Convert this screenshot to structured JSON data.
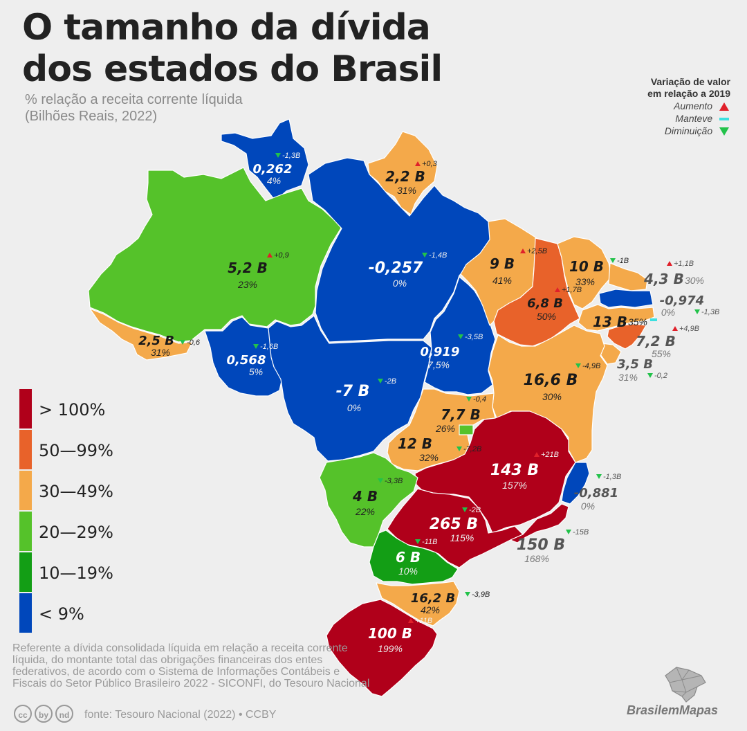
{
  "title": "O tamanho da dívida dos estados do Brasil",
  "subtitle_line1": "% relação a receita corrente líquida",
  "subtitle_line2": "(Bilhões Reais, 2022)",
  "variation_legend": {
    "title_line1": "Variação de valor",
    "title_line2": "em relação a 2019",
    "increase": "Aumento",
    "same": "Manteve",
    "decrease": "Diminuição"
  },
  "color_legend": [
    {
      "label": "> 100%",
      "color": "#b0001a"
    },
    {
      "label": "50—99%",
      "color": "#e8622a"
    },
    {
      "label": "30—49%",
      "color": "#f4a94a"
    },
    {
      "label": "20—29%",
      "color": "#55c22a"
    },
    {
      "label": "10—19%",
      "color": "#139e15"
    },
    {
      "label": "< 9%",
      "color": "#0047bb"
    }
  ],
  "states": [
    {
      "id": "RR",
      "value": "0,262",
      "pct": "4%",
      "change": "-1,3B",
      "dir": "down"
    },
    {
      "id": "AP",
      "value": "2,2 B",
      "pct": "31%",
      "change": "+0,3",
      "dir": "up"
    },
    {
      "id": "AM",
      "value": "5,2 B",
      "pct": "23%",
      "change": "+0,9",
      "dir": "up"
    },
    {
      "id": "PA",
      "value": "-0,257",
      "pct": "0%",
      "change": "-1,4B",
      "dir": "down"
    },
    {
      "id": "AC",
      "value": "2,5 B",
      "pct": "31%",
      "change": "-0,6",
      "dir": "down"
    },
    {
      "id": "RO",
      "value": "0,568",
      "pct": "5%",
      "change": "-1,6B",
      "dir": "down"
    },
    {
      "id": "MT",
      "value": "-7 B",
      "pct": "0%",
      "change": "-2B",
      "dir": "down"
    },
    {
      "id": "TO",
      "value": "0,919",
      "pct": "7,5%",
      "change": "-3,5B",
      "dir": "down"
    },
    {
      "id": "MA",
      "value": "9 B",
      "pct": "41%",
      "change": "+2,5B",
      "dir": "up"
    },
    {
      "id": "PI",
      "value": "6,8 B",
      "pct": "50%",
      "change": "+1,7B",
      "dir": "up"
    },
    {
      "id": "CE",
      "value": "10 B",
      "pct": "33%",
      "change": "-1B",
      "dir": "down"
    },
    {
      "id": "RN",
      "value": "4,3 B",
      "pct": "30%",
      "change": "+1,1B",
      "dir": "up"
    },
    {
      "id": "PB",
      "value": "-0,974",
      "pct": "0%",
      "change": "-1,3B",
      "dir": "down"
    },
    {
      "id": "PE",
      "value": "13 B",
      "pct": "35%",
      "change": "",
      "dir": "same"
    },
    {
      "id": "AL",
      "value": "7,2 B",
      "pct": "55%",
      "change": "+4,9B",
      "dir": "up"
    },
    {
      "id": "SE",
      "value": "3,5 B",
      "pct": "31%",
      "change": "-0,2",
      "dir": "down"
    },
    {
      "id": "BA",
      "value": "16,6 B",
      "pct": "30%",
      "change": "-4,9B",
      "dir": "down"
    },
    {
      "id": "GO",
      "value": "12 B",
      "pct": "32%",
      "change": "-7,2B",
      "dir": "down"
    },
    {
      "id": "DF",
      "value": "7,7 B",
      "pct": "26%",
      "change": "-0,4",
      "dir": "down"
    },
    {
      "id": "MG",
      "value": "143 B",
      "pct": "157%",
      "change": "+21B",
      "dir": "up"
    },
    {
      "id": "ES",
      "value": "-0,881",
      "pct": "0%",
      "change": "-1,3B",
      "dir": "down"
    },
    {
      "id": "MS",
      "value": "4 B",
      "pct": "22%",
      "change": "-3,3B",
      "dir": "down"
    },
    {
      "id": "SP",
      "value": "265 B",
      "pct": "115%",
      "change": "-2B",
      "dir": "down"
    },
    {
      "id": "RJ",
      "value": "150 B",
      "pct": "168%",
      "change": "-15B",
      "dir": "down"
    },
    {
      "id": "PR",
      "value": "6 B",
      "pct": "10%",
      "change": "-11B",
      "dir": "down"
    },
    {
      "id": "SC",
      "value": "16,2 B",
      "pct": "42%",
      "change": "-3,9B",
      "dir": "down"
    },
    {
      "id": "RS",
      "value": "100 B",
      "pct": "199%",
      "change": "+11B",
      "dir": "up"
    }
  ],
  "note": "Referente a dívida consolidada líquida em relação a receita corrente líquida, do montante total das obrigações financeiras dos entes federativos, de acordo com o Sistema de Informações Contábeis e Fiscais do Setor Público Brasileiro 2022 - SICONFI, do Tesouro Nacional",
  "source": "fonte: Tesouro Nacional (2022) • CCBY",
  "cc_icons": [
    "cc",
    "by",
    "nd"
  ],
  "brand": "BrasilemMapas"
}
